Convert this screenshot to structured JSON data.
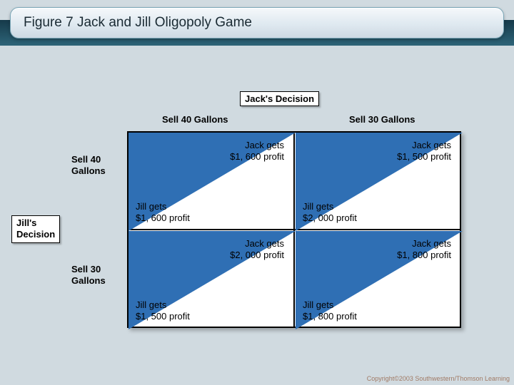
{
  "title": "Figure 7 Jack and Jill Oligopoly Game",
  "jack_decision": "Jack's Decision",
  "jill_decision": "Jill's Decision",
  "col_a": "Sell 40 Gallons",
  "col_b": "Sell 30 Gallons",
  "row_a": "Sell 40 Gallons",
  "row_b": "Sell 30 Gallons",
  "diag_color": "#2f6fb4",
  "cells": {
    "c00": {
      "jack": "Jack gets\n$1, 600 profit",
      "jill": "Jill gets\n$1, 600 profit"
    },
    "c01": {
      "jack": "Jack gets\n$1, 500 profit",
      "jill": "Jill gets\n$2, 000 profit"
    },
    "c10": {
      "jack": "Jack gets\n$2, 000 profit",
      "jill": "Jill gets\n$1, 500 profit"
    },
    "c11": {
      "jack": "Jack gets\n$1, 800 profit",
      "jill": "Jill gets\n$1, 800 profit"
    }
  },
  "copyright": "Copyright©2003 Southwestern/Thomson Learning"
}
